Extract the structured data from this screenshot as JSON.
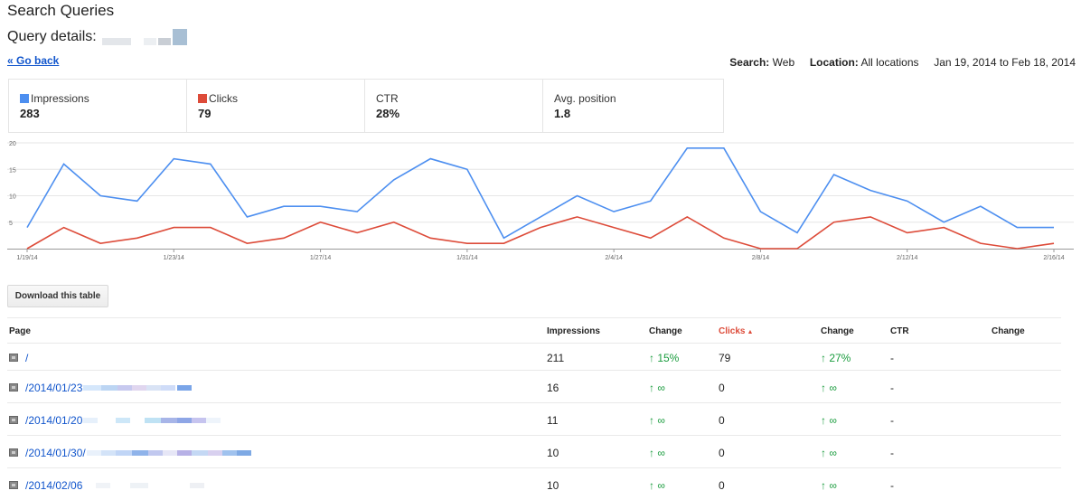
{
  "header": {
    "title": "Search Queries",
    "query_details_label": "Query details:",
    "go_back": "« Go back"
  },
  "filters": {
    "search_label": "Search:",
    "search_value": "Web",
    "location_label": "Location:",
    "location_value": "All locations",
    "date_range": "Jan 19, 2014 to Feb 18, 2014"
  },
  "metrics": [
    {
      "label": "Impressions",
      "value": "283",
      "color": "#4d8ff0"
    },
    {
      "label": "Clicks",
      "value": "79",
      "color": "#dd4b39"
    },
    {
      "label": "CTR",
      "value": "28%",
      "color": ""
    },
    {
      "label": "Avg. position",
      "value": "1.8",
      "color": ""
    }
  ],
  "chart_data": {
    "type": "line",
    "x": [
      "1/19/14",
      "1/20/14",
      "1/21/14",
      "1/22/14",
      "1/23/14",
      "1/24/14",
      "1/25/14",
      "1/26/14",
      "1/27/14",
      "1/28/14",
      "1/29/14",
      "1/30/14",
      "1/31/14",
      "2/1/14",
      "2/2/14",
      "2/3/14",
      "2/4/14",
      "2/5/14",
      "2/6/14",
      "2/7/14",
      "2/8/14",
      "2/9/14",
      "2/10/14",
      "2/11/14",
      "2/12/14",
      "2/13/14",
      "2/14/14",
      "2/15/14",
      "2/16/14"
    ],
    "xticks": [
      "1/19/14",
      "1/23/14",
      "1/27/14",
      "1/31/14",
      "2/4/14",
      "2/8/14",
      "2/12/14",
      "2/16/14"
    ],
    "series": [
      {
        "name": "Impressions",
        "color": "#4d8ff0",
        "values": [
          4,
          16,
          10,
          9,
          17,
          16,
          6,
          8,
          8,
          7,
          13,
          17,
          15,
          2,
          6,
          10,
          7,
          9,
          19,
          19,
          7,
          3,
          14,
          11,
          9,
          5,
          8,
          4,
          4
        ]
      },
      {
        "name": "Clicks",
        "color": "#dd4b39",
        "values": [
          0,
          4,
          1,
          2,
          4,
          4,
          1,
          2,
          5,
          3,
          5,
          2,
          1,
          1,
          4,
          6,
          4,
          2,
          6,
          2,
          0,
          0,
          5,
          6,
          3,
          4,
          1,
          0,
          1
        ]
      }
    ],
    "yticks": [
      5,
      10,
      15,
      20
    ],
    "ylim": [
      0,
      20
    ],
    "grid": true
  },
  "download_button": "Download this table",
  "table": {
    "headers": {
      "page": "Page",
      "impressions": "Impressions",
      "change1": "Change",
      "clicks": "Clicks",
      "sort_arrow": "▲",
      "change2": "Change",
      "ctr": "CTR",
      "change3": "Change"
    },
    "rows": [
      {
        "page": "/",
        "impressions": "211",
        "change": "↑ 15%",
        "clicks": "79",
        "clicks_change": "↑ 27%",
        "ctr": "-"
      },
      {
        "page": "/2014/01/23",
        "impressions": "16",
        "change": "↑ ∞",
        "clicks": "0",
        "clicks_change": "↑ ∞",
        "ctr": "-"
      },
      {
        "page": "/2014/01/20",
        "impressions": "11",
        "change": "↑ ∞",
        "clicks": "0",
        "clicks_change": "↑ ∞",
        "ctr": "-"
      },
      {
        "page": "/2014/01/30/",
        "impressions": "10",
        "change": "↑ ∞",
        "clicks": "0",
        "clicks_change": "↑ ∞",
        "ctr": "-"
      },
      {
        "page": "/2014/02/06",
        "impressions": "10",
        "change": "↑ ∞",
        "clicks": "0",
        "clicks_change": "↑ ∞",
        "ctr": "-"
      }
    ]
  }
}
